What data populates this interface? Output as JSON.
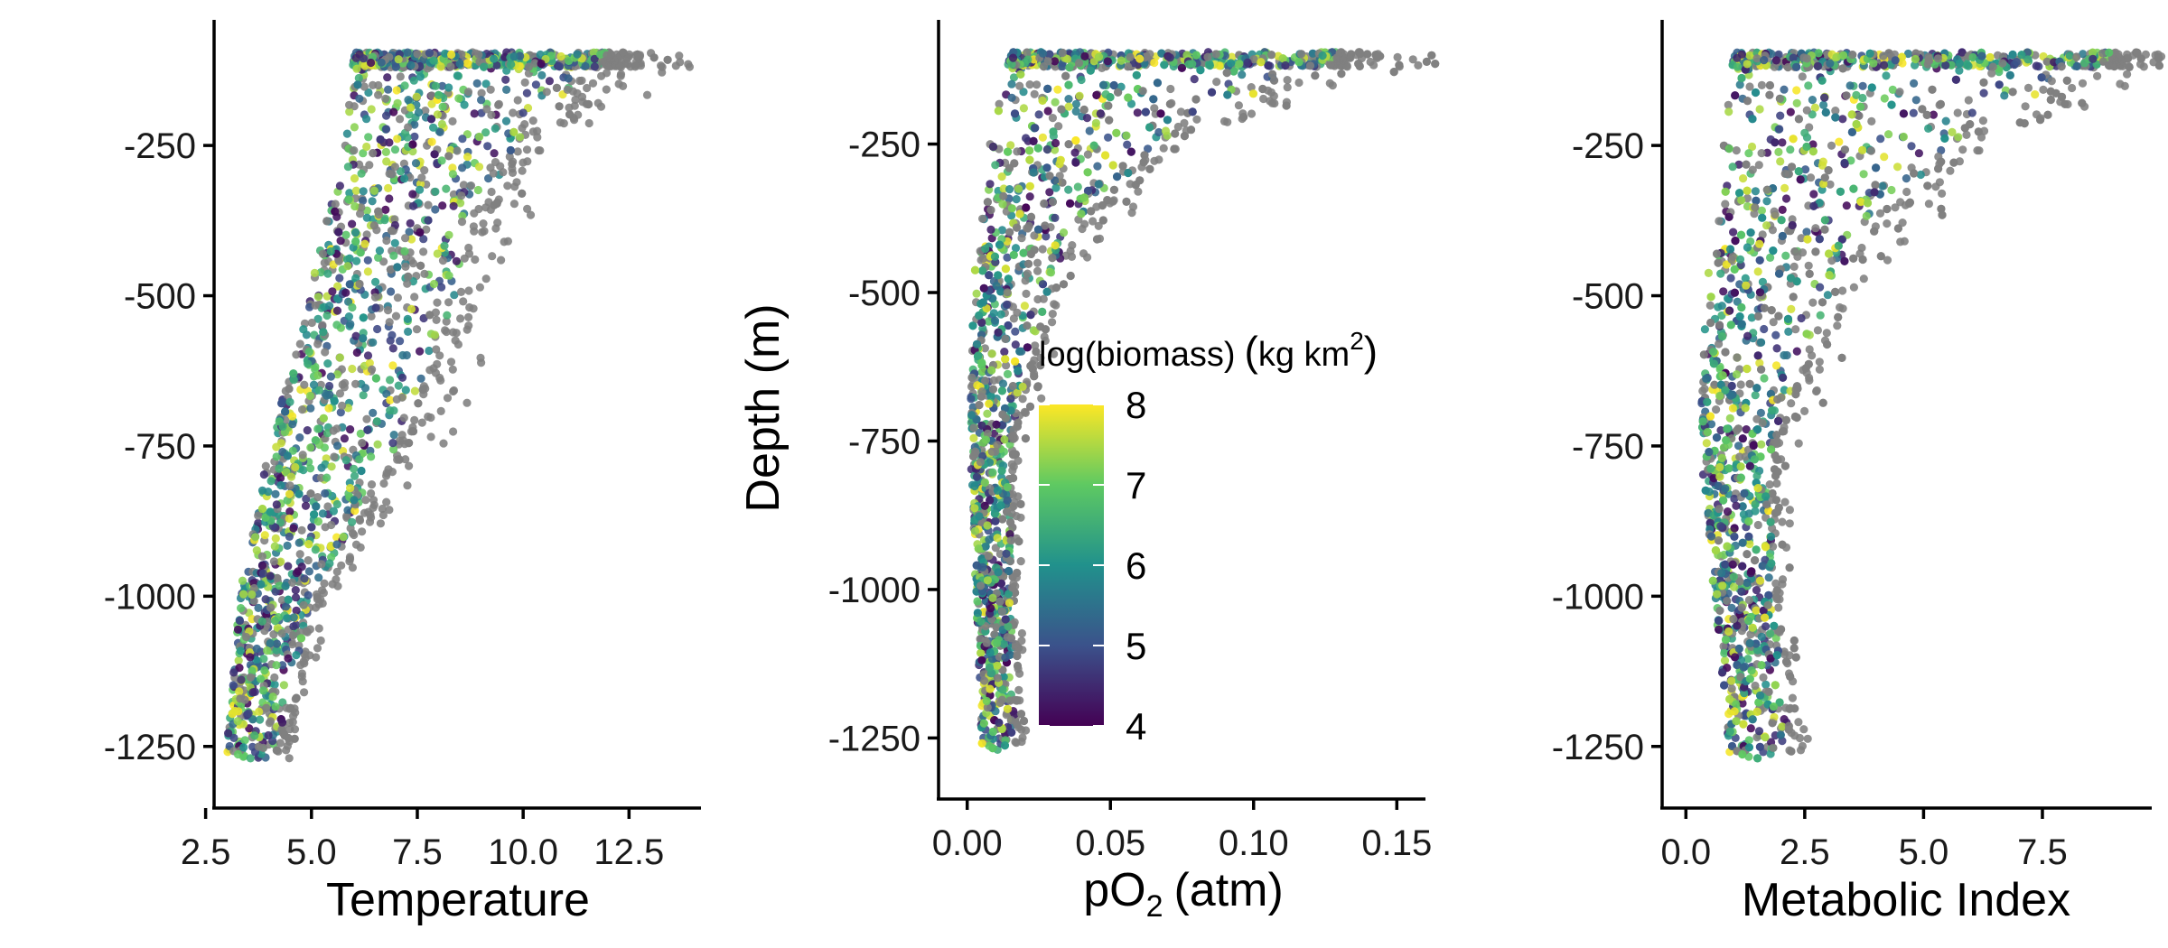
{
  "chart_data": [
    {
      "type": "scatter",
      "panel": "left",
      "xlabel": "Temperature",
      "ylabel": "",
      "xlim": [
        2.7,
        14.2
      ],
      "ylim": [
        -1330,
        -50
      ],
      "xticks": [
        2.5,
        5.0,
        7.5,
        10.0,
        12.5
      ],
      "xtick_labels": [
        "2.5",
        "5.0",
        "7.5",
        "10.0",
        "12.5"
      ],
      "yticks": [
        -250,
        -500,
        -750,
        -1000,
        -1250
      ],
      "ytick_labels": [
        "-250",
        "-500",
        "-750",
        "-1000",
        "-1250"
      ],
      "color_variable": "log(biomass)",
      "missing_color": "#7f7f7f",
      "point_trend": [
        {
          "depth": -100,
          "x_min": 6.0,
          "x_max": 12.0
        },
        {
          "depth": -250,
          "x_min": 5.8,
          "x_max": 9.8
        },
        {
          "depth": -400,
          "x_min": 5.2,
          "x_max": 8.7
        },
        {
          "depth": -500,
          "x_min": 5.0,
          "x_max": 8.4
        },
        {
          "depth": -750,
          "x_min": 4.0,
          "x_max": 7.0
        },
        {
          "depth": -1000,
          "x_min": 3.3,
          "x_max": 5.0
        },
        {
          "depth": -1250,
          "x_min": 3.0,
          "x_max": 4.2
        }
      ],
      "n_points": 2200
    },
    {
      "type": "scatter",
      "panel": "middle",
      "xlabel_main": "pO",
      "xlabel_sub": "2",
      "xlabel_unit": "(atm)",
      "ylabel": "Depth (m)",
      "xlim": [
        -0.01,
        0.16
      ],
      "ylim": [
        -1330,
        -50
      ],
      "xticks": [
        0.0,
        0.05,
        0.1,
        0.15
      ],
      "xtick_labels": [
        "0.00",
        "0.05",
        "0.10",
        "0.15"
      ],
      "yticks": [
        -250,
        -500,
        -750,
        -1000,
        -1250
      ],
      "ytick_labels": [
        "-250",
        "-500",
        "-750",
        "-1000",
        "-1250"
      ],
      "color_variable": "log(biomass)",
      "missing_color": "#7f7f7f",
      "point_trend": [
        {
          "depth": -100,
          "x_min": 0.015,
          "x_max": 0.13
        },
        {
          "depth": -250,
          "x_min": 0.008,
          "x_max": 0.065
        },
        {
          "depth": -400,
          "x_min": 0.004,
          "x_max": 0.038
        },
        {
          "depth": -500,
          "x_min": 0.002,
          "x_max": 0.028
        },
        {
          "depth": -750,
          "x_min": 0.001,
          "x_max": 0.015
        },
        {
          "depth": -1000,
          "x_min": 0.003,
          "x_max": 0.015
        },
        {
          "depth": -1250,
          "x_min": 0.005,
          "x_max": 0.017
        }
      ],
      "n_points": 2200
    },
    {
      "type": "scatter",
      "panel": "right",
      "xlabel": "Metabolic Index",
      "ylabel": "",
      "xlim": [
        -0.5,
        9.8
      ],
      "ylim": [
        -1330,
        -50
      ],
      "xticks": [
        0.0,
        2.5,
        5.0,
        7.5
      ],
      "xtick_labels": [
        "0.0",
        "2.5",
        "5.0",
        "7.5"
      ],
      "yticks": [
        -250,
        -500,
        -750,
        -1000,
        -1250
      ],
      "ytick_labels": [
        "-250",
        "-500",
        "-750",
        "-1000",
        "-1250"
      ],
      "color_variable": "log(biomass)",
      "missing_color": "#7f7f7f",
      "point_trend": [
        {
          "depth": -100,
          "x_min": 1.0,
          "x_max": 9.0
        },
        {
          "depth": -250,
          "x_min": 0.8,
          "x_max": 5.5
        },
        {
          "depth": -400,
          "x_min": 0.6,
          "x_max": 3.8
        },
        {
          "depth": -500,
          "x_min": 0.4,
          "x_max": 3.0
        },
        {
          "depth": -750,
          "x_min": 0.3,
          "x_max": 1.8
        },
        {
          "depth": -1000,
          "x_min": 0.6,
          "x_max": 1.8
        },
        {
          "depth": -1250,
          "x_min": 0.9,
          "x_max": 2.2
        }
      ],
      "n_points": 2200
    }
  ],
  "legend": {
    "title_main": "log(biomass)",
    "title_unit_open": "(",
    "title_unit": "kg km",
    "title_sup": "2",
    "title_unit_close": ")",
    "labels": [
      "8",
      "7",
      "6",
      "5",
      "4"
    ],
    "range": [
      4,
      8
    ],
    "placement": "inside middle panel",
    "colormap": "viridis"
  },
  "colors": {
    "viridis_stops": [
      "#440154",
      "#3b528b",
      "#21918c",
      "#5ec962",
      "#fde725"
    ],
    "missing": "#7f7f7f",
    "axis": "#000000"
  }
}
